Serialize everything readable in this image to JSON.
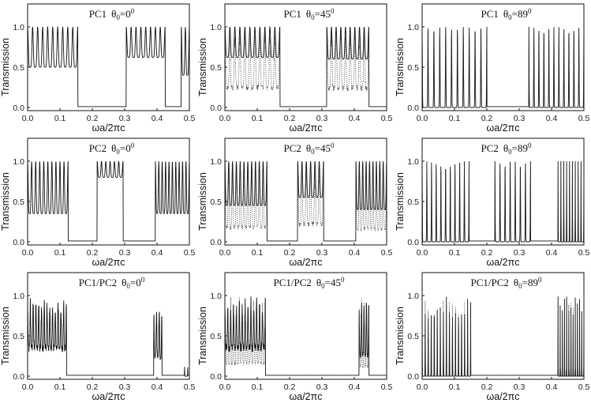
{
  "figure": {
    "x_axis_label": "ωa/2πc",
    "y_axis_label": "Transmission",
    "theta_symbol": "θ",
    "sub0": "0",
    "deg": "0"
  },
  "chart_data": [
    {
      "type": "line",
      "structure": "PC1",
      "theta": "0",
      "title_main": "PC1",
      "eq": "=0",
      "xlim": [
        0,
        0.5
      ],
      "ylim": [
        0,
        1
      ],
      "xticks": [
        "0.0",
        "0.1",
        "0.2",
        "0.3",
        "0.4",
        "0.5"
      ],
      "yticks": [
        "0.0",
        "0.5",
        "1.0"
      ],
      "bands": [
        [
          0,
          0.155
        ],
        [
          0.305,
          0.425
        ],
        [
          0.475,
          0.5
        ]
      ],
      "fringes": [
        10,
        8,
        2
      ],
      "floor": [
        0.5,
        0.62,
        0.4
      ],
      "dotted": false
    },
    {
      "type": "line",
      "structure": "PC1",
      "theta": "45",
      "title_main": "PC1",
      "eq": "=45",
      "xlim": [
        0,
        0.5
      ],
      "ylim": [
        0,
        1
      ],
      "xticks": [
        "0.0",
        "0.1",
        "0.2",
        "0.3",
        "0.4",
        "0.5"
      ],
      "yticks": [
        "0.0",
        "0.5",
        "1.0"
      ],
      "bands": [
        [
          0,
          0.17
        ],
        [
          0.315,
          0.445
        ]
      ],
      "fringes": [
        11,
        9
      ],
      "floor": [
        0.62,
        0.6
      ],
      "dotted": true
    },
    {
      "type": "line",
      "structure": "PC1",
      "theta": "89",
      "title_main": "PC1",
      "eq": "=89",
      "xlim": [
        0,
        0.5
      ],
      "ylim": [
        0,
        1
      ],
      "xticks": [
        "0.0",
        "0.1",
        "0.2",
        "0.3",
        "0.4",
        "0.5"
      ],
      "yticks": [
        "0.0",
        "0.5",
        "1.0"
      ],
      "bands": [
        [
          0,
          0.2
        ],
        [
          0.33,
          0.5
        ]
      ],
      "fringes": [
        11,
        11
      ],
      "floor": [
        0.0,
        0.0
      ],
      "dotted": true
    },
    {
      "type": "line",
      "structure": "PC2",
      "theta": "0",
      "title_main": "PC2",
      "eq": "=0",
      "xlim": [
        0,
        0.5
      ],
      "ylim": [
        0,
        1
      ],
      "xticks": [
        "0.0",
        "0.1",
        "0.2",
        "0.3",
        "0.4",
        "0.5"
      ],
      "yticks": [
        "0.0",
        "0.5",
        "1.0"
      ],
      "bands": [
        [
          0,
          0.125
        ],
        [
          0.215,
          0.295
        ],
        [
          0.395,
          0.5
        ]
      ],
      "fringes": [
        10,
        6,
        10
      ],
      "floor": [
        0.35,
        0.8,
        0.35
      ],
      "dotted": false
    },
    {
      "type": "line",
      "structure": "PC2",
      "theta": "45",
      "title_main": "PC2",
      "eq": "=45",
      "xlim": [
        0,
        0.5
      ],
      "ylim": [
        0,
        1
      ],
      "xticks": [
        "0.0",
        "0.1",
        "0.2",
        "0.3",
        "0.4",
        "0.5"
      ],
      "yticks": [
        "0.0",
        "0.5",
        "1.0"
      ],
      "bands": [
        [
          0,
          0.13
        ],
        [
          0.225,
          0.305
        ],
        [
          0.405,
          0.5
        ]
      ],
      "fringes": [
        11,
        6,
        9
      ],
      "floor": [
        0.45,
        0.55,
        0.4
      ],
      "dotted": true
    },
    {
      "type": "line",
      "structure": "PC2",
      "theta": "89",
      "title_main": "PC2",
      "eq": "=89",
      "xlim": [
        0,
        0.5
      ],
      "ylim": [
        0,
        1
      ],
      "xticks": [
        "0.0",
        "0.1",
        "0.2",
        "0.3",
        "0.4",
        "0.5"
      ],
      "yticks": [
        "0.0",
        "0.5",
        "1.0"
      ],
      "bands": [
        [
          0,
          0.145
        ],
        [
          0.225,
          0.335
        ],
        [
          0.42,
          0.5
        ]
      ],
      "fringes": [
        10,
        7,
        9
      ],
      "floor": [
        0.0,
        0.0,
        0.0
      ],
      "dotted": true
    },
    {
      "type": "line",
      "structure": "PC1/PC2",
      "theta": "0",
      "title_main": "PC1/PC2",
      "eq": "=0",
      "xlim": [
        0,
        0.5
      ],
      "ylim": [
        0,
        1
      ],
      "xticks": [
        "0.0",
        "0.1",
        "0.2",
        "0.3",
        "0.4",
        "0.5"
      ],
      "yticks": [
        "0.0",
        "0.5",
        "1.0"
      ],
      "bands": [
        [
          0,
          0.12
        ],
        [
          0.39,
          0.415
        ],
        [
          0.485,
          0.495
        ]
      ],
      "fringes": [
        14,
        3,
        1
      ],
      "floor": [
        0.4,
        0.3,
        0.0
      ],
      "peak": [
        1.0,
        0.9,
        0.12
      ],
      "dotted": false
    },
    {
      "type": "line",
      "structure": "PC1/PC2",
      "theta": "45",
      "title_main": "PC1/PC2",
      "eq": "=45",
      "xlim": [
        0,
        0.5
      ],
      "ylim": [
        0,
        1
      ],
      "xticks": [
        "0.0",
        "0.1",
        "0.2",
        "0.3",
        "0.4",
        "0.5"
      ],
      "yticks": [
        "0.0",
        "0.5",
        "1.0"
      ],
      "bands": [
        [
          0,
          0.125
        ],
        [
          0.415,
          0.445
        ]
      ],
      "fringes": [
        14,
        4
      ],
      "floor": [
        0.4,
        0.3
      ],
      "peak": [
        1.0,
        1.0
      ],
      "dotted": true
    },
    {
      "type": "line",
      "structure": "PC1/PC2",
      "theta": "89",
      "title_main": "PC1/PC2",
      "eq": "=89",
      "xlim": [
        0,
        0.5
      ],
      "ylim": [
        0,
        1
      ],
      "xticks": [
        "0.0",
        "0.1",
        "0.2",
        "0.3",
        "0.4",
        "0.5"
      ],
      "yticks": [
        "0.0",
        "0.5",
        "1.0"
      ],
      "bands": [
        [
          0,
          0.15
        ],
        [
          0.42,
          0.5
        ]
      ],
      "fringes": [
        16,
        12
      ],
      "floor": [
        0.0,
        0.0
      ],
      "dotted": true
    }
  ]
}
